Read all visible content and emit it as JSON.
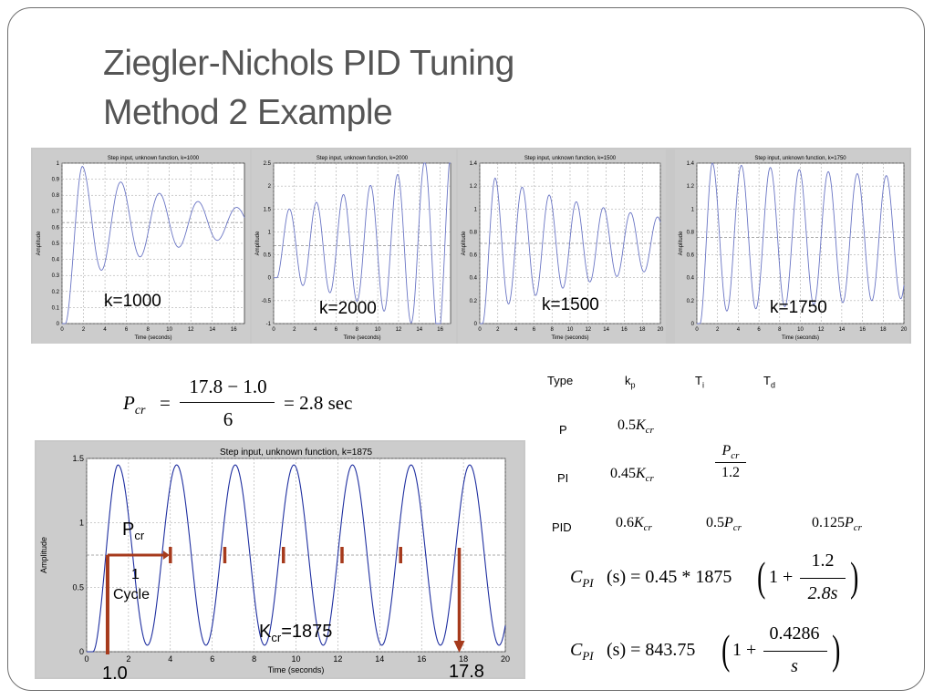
{
  "slide": {
    "title_line1": "Ziegler-Nichols PID Tuning",
    "title_line2": "Method 2 Example"
  },
  "chart_data": [
    {
      "type": "line",
      "title": "Step input, unknown function, k=1000",
      "xlabel": "Time (seconds)",
      "ylabel": "Amplitude",
      "xlim": [
        0,
        17
      ],
      "ylim": [
        0,
        1
      ],
      "x_ticks": [
        "0",
        "2",
        "4",
        "6",
        "8",
        "10",
        "12",
        "14",
        "16"
      ],
      "y_ticks": [
        "0",
        "0.1",
        "0.2",
        "0.3",
        "0.4",
        "0.5",
        "0.6",
        "0.7",
        "0.8",
        "0.9",
        "1"
      ],
      "response": {
        "final": 0.63,
        "peak": 0.98,
        "peak_time": 1.9,
        "period": 3.6,
        "decay": 0.72
      },
      "annotation": "k=1000"
    },
    {
      "type": "line",
      "title": "Step input, unknown function, k=2000",
      "xlabel": "Time (seconds)",
      "ylabel": "Amplitude",
      "xlim": [
        0,
        17
      ],
      "ylim": [
        -1,
        2.5
      ],
      "x_ticks": [
        "0",
        "2",
        "4",
        "6",
        "8",
        "10",
        "12",
        "14",
        "16"
      ],
      "y_ticks": [
        "-1",
        "-0.5",
        "0",
        "0.5",
        "1",
        "1.5",
        "2",
        "2.5"
      ],
      "response": {
        "final": 0.7,
        "peak": 1.5,
        "peak_time": 1.5,
        "period": 2.6,
        "growth": 1.18
      },
      "annotation": "k=2000"
    },
    {
      "type": "line",
      "title": "Step input, unknown function, k=1500",
      "xlabel": "Time (seconds)",
      "ylabel": "Amplitude",
      "xlim": [
        0,
        20
      ],
      "ylim": [
        0,
        1.4
      ],
      "x_ticks": [
        "0",
        "2",
        "4",
        "6",
        "8",
        "10",
        "12",
        "14",
        "16",
        "18",
        "20"
      ],
      "y_ticks": [
        "0",
        "0.2",
        "0.4",
        "0.6",
        "0.8",
        "1",
        "1.2",
        "1.4"
      ],
      "response": {
        "final": 0.7,
        "peak": 1.27,
        "peak_time": 1.7,
        "period": 3.0,
        "decay": 0.86
      },
      "annotation": "k=1500"
    },
    {
      "type": "line",
      "title": "Step input, unknown function, k=1750",
      "xlabel": "Time (seconds)",
      "ylabel": "Amplitude",
      "xlim": [
        0,
        20
      ],
      "ylim": [
        0,
        1.4
      ],
      "x_ticks": [
        "0",
        "2",
        "4",
        "6",
        "8",
        "10",
        "12",
        "14",
        "16",
        "18",
        "20"
      ],
      "y_ticks": [
        "0",
        "0.2",
        "0.4",
        "0.6",
        "0.8",
        "1",
        "1.2",
        "1.4"
      ],
      "response": {
        "final": 0.75,
        "peak": 1.4,
        "peak_time": 1.5,
        "period": 2.8,
        "decay": 0.97
      },
      "annotation": "k=1750"
    },
    {
      "type": "line",
      "title": "Step input, unknown function, k=1875",
      "xlabel": "Time (seconds)",
      "ylabel": "Amplitude",
      "xlim": [
        0,
        20
      ],
      "ylim": [
        0,
        1.5
      ],
      "x_ticks": [
        "0",
        "2",
        "4",
        "6",
        "8",
        "10",
        "12",
        "14",
        "16",
        "18",
        "20"
      ],
      "y_ticks": [
        "0",
        "0.5",
        "1",
        "1.5"
      ],
      "response": {
        "final": 0.75,
        "peak": 1.45,
        "peak_time": 1.5,
        "period": 2.8,
        "decay": 1.0
      },
      "annotation_values": {
        "start_time": 1.0,
        "end_time": 17.8,
        "marker_level": 0.75,
        "cycle_marks": [
          4.0,
          6.6,
          9.4,
          12.2,
          15.0
        ]
      },
      "labels": {
        "pcr": "P",
        "pcr_sub": "cr",
        "cycle_line1": "1",
        "cycle_line2": "Cycle",
        "kcr": "K",
        "kcr_sub": "cr",
        "kcr_value": "=1875",
        "start_label": "1.0",
        "end_label": "17.8"
      }
    }
  ],
  "equation": {
    "lhs_var": "P",
    "lhs_sub": "cr",
    "equals": "=",
    "numerator": "17.8 − 1.0",
    "denominator": "6",
    "result": "= 2.8 sec"
  },
  "tuning_table": {
    "headers": [
      "Type",
      "k",
      "T",
      "T"
    ],
    "header_subs": [
      "",
      "p",
      "i",
      "d"
    ],
    "rows": [
      {
        "type": "P",
        "kp_coef": "0.5",
        "kp_var": "K",
        "kp_sub": "cr"
      },
      {
        "type": "PI",
        "kp_coef": "0.45",
        "kp_var": "K",
        "kp_sub": "cr",
        "ti_num_var": "P",
        "ti_num_sub": "cr",
        "ti_den": "1.2"
      },
      {
        "type": "PID",
        "kp_coef": "0.6",
        "kp_var": "K",
        "kp_sub": "cr",
        "ti_coef": "0.5",
        "ti_var": "P",
        "ti_sub": "cr",
        "td_coef": "0.125",
        "td_var": "P",
        "td_sub": "cr"
      }
    ]
  },
  "controller_equations": {
    "eq1": {
      "lhs": "C",
      "lhs_sub": "PI",
      "arg": "(s) = 0.45 * 1875",
      "one_plus": "1 +",
      "num": "1.2",
      "den": "2.8s"
    },
    "eq2": {
      "lhs": "C",
      "lhs_sub": "PI",
      "arg": "(s) = 843.75",
      "one_plus": "1 +",
      "num": "0.4286",
      "den": "s"
    }
  }
}
